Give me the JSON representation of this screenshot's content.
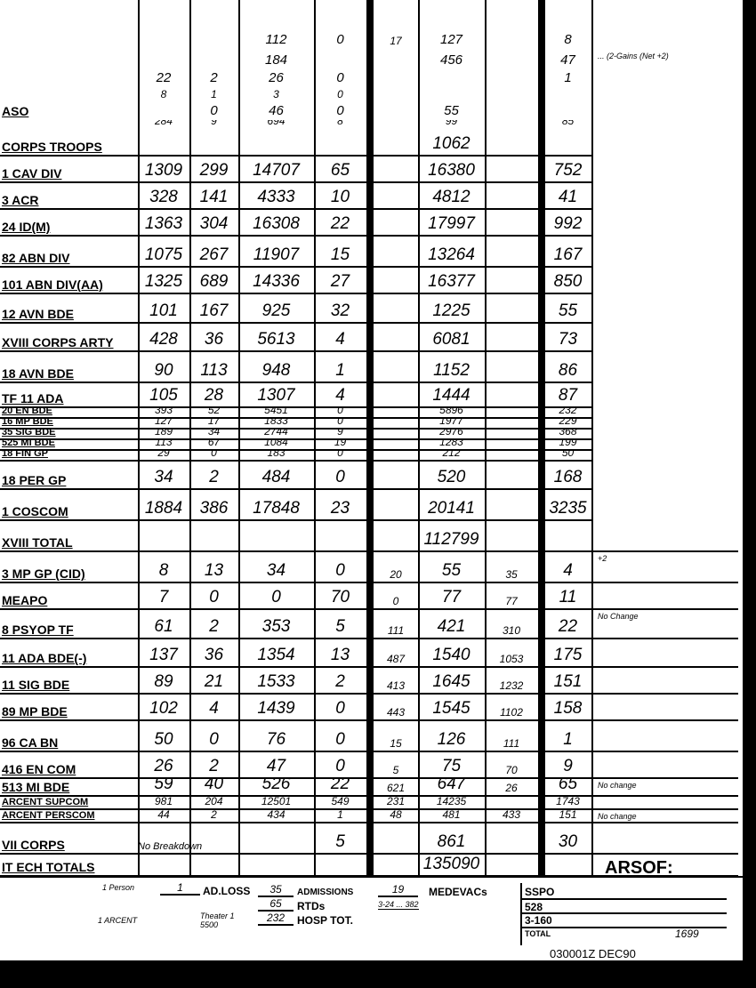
{
  "rows": [
    {
      "label": "",
      "cells": [
        "",
        "",
        "112",
        "0",
        "17",
        "127",
        "",
        "8"
      ],
      "note": ""
    },
    {
      "label": "",
      "cells": [
        "",
        "",
        "184",
        "",
        "",
        "456",
        "",
        "47"
      ],
      "note": "... (2-Gains (Net +2)"
    },
    {
      "label": "",
      "cells": [
        "22",
        "2",
        "26",
        "0",
        "",
        "",
        "",
        "1"
      ],
      "note": ""
    },
    {
      "label": "",
      "cells": [
        "8",
        "1",
        "3",
        "0",
        "",
        "",
        "",
        ""
      ],
      "note": ""
    },
    {
      "label": "ASO",
      "cells": [
        "",
        "0",
        "46",
        "0",
        "",
        "55",
        "",
        ""
      ],
      "note": ""
    },
    {
      "label": "",
      "cells": [
        "284",
        "9",
        "694",
        "8",
        "",
        "99",
        "",
        "85"
      ],
      "note": ""
    },
    {
      "label": "CORPS TROOPS",
      "cells": [
        "",
        "",
        "",
        "",
        "",
        "1062",
        "",
        ""
      ],
      "note": ""
    },
    {
      "label": "1 CAV DIV",
      "cells": [
        "1309",
        "299",
        "14707",
        "65",
        "",
        "16380",
        "",
        "752"
      ],
      "note": ""
    },
    {
      "label": "3 ACR",
      "cells": [
        "328",
        "141",
        "4333",
        "10",
        "",
        "4812",
        "",
        "41"
      ],
      "note": ""
    },
    {
      "label": "24 ID(M)",
      "cells": [
        "1363",
        "304",
        "16308",
        "22",
        "",
        "17997",
        "",
        "992"
      ],
      "note": ""
    },
    {
      "label": "82 ABN DIV",
      "cells": [
        "1075",
        "267",
        "11907",
        "15",
        "",
        "13264",
        "",
        "167"
      ],
      "note": ""
    },
    {
      "label": "101 ABN DIV(AA)",
      "cells": [
        "1325",
        "689",
        "14336",
        "27",
        "",
        "16377",
        "",
        "850"
      ],
      "note": ""
    },
    {
      "label": "12 AVN BDE",
      "cells": [
        "101",
        "167",
        "925",
        "32",
        "",
        "1225",
        "",
        "55"
      ],
      "note": ""
    },
    {
      "label": "XVIII CORPS ARTY",
      "cells": [
        "428",
        "36",
        "5613",
        "4",
        "",
        "6081",
        "",
        "73"
      ],
      "note": ""
    },
    {
      "label": "18 AVN BDE",
      "cells": [
        "90",
        "113",
        "948",
        "1",
        "",
        "1152",
        "",
        "86"
      ],
      "note": ""
    },
    {
      "label": "TF 11 ADA",
      "cells": [
        "105",
        "28",
        "1307",
        "4",
        "",
        "1444",
        "",
        "87"
      ],
      "note": ""
    },
    {
      "label": "20 EN BDE",
      "cells": [
        "393",
        "52",
        "5451",
        "0",
        "",
        "5896",
        "",
        "232"
      ],
      "note": ""
    },
    {
      "label": "16 MP BDE",
      "cells": [
        "127",
        "17",
        "1833",
        "0",
        "",
        "1977",
        "",
        "229"
      ],
      "note": ""
    },
    {
      "label": "35 SIG BDE",
      "cells": [
        "189",
        "34",
        "2744",
        "9",
        "",
        "2976",
        "",
        "368"
      ],
      "note": ""
    },
    {
      "label": "525 MI BDE",
      "cells": [
        "113",
        "67",
        "1084",
        "19",
        "",
        "1283",
        "",
        "199"
      ],
      "note": ""
    },
    {
      "label": "18 FIN GP",
      "cells": [
        "29",
        "0",
        "183",
        "0",
        "",
        "212",
        "",
        "50"
      ],
      "note": ""
    },
    {
      "label": "18 PER GP",
      "cells": [
        "34",
        "2",
        "484",
        "0",
        "",
        "520",
        "",
        "168"
      ],
      "note": ""
    },
    {
      "label": "1 COSCOM",
      "cells": [
        "1884",
        "386",
        "17848",
        "23",
        "",
        "20141",
        "",
        "3235"
      ],
      "note": ""
    },
    {
      "label": "XVIII TOTAL",
      "cells": [
        "",
        "",
        "",
        "",
        "",
        "112799",
        "",
        ""
      ],
      "note": ""
    },
    {
      "label": "3 MP GP (CID)",
      "cells": [
        "8",
        "13",
        "34",
        "0",
        "20",
        "55",
        "35",
        "4"
      ],
      "note": "+2"
    },
    {
      "label": "MEAPO",
      "cells": [
        "7",
        "0",
        "0",
        "70",
        "0",
        "77",
        "77",
        "11"
      ],
      "note": ""
    },
    {
      "label": "8 PSYOP TF",
      "cells": [
        "61",
        "2",
        "353",
        "5",
        "111",
        "421",
        "310",
        "22"
      ],
      "note": "No Change"
    },
    {
      "label": "11 ADA BDE(-)",
      "cells": [
        "137",
        "36",
        "1354",
        "13",
        "487",
        "1540",
        "1053",
        "175"
      ],
      "note": ""
    },
    {
      "label": "11 SIG BDE",
      "cells": [
        "89",
        "21",
        "1533",
        "2",
        "413",
        "1645",
        "1232",
        "151"
      ],
      "note": ""
    },
    {
      "label": "89 MP BDE",
      "cells": [
        "102",
        "4",
        "1439",
        "0",
        "443",
        "1545",
        "1102",
        "158"
      ],
      "note": ""
    },
    {
      "label": "96 CA BN",
      "cells": [
        "50",
        "0",
        "76",
        "0",
        "15",
        "126",
        "111",
        "1"
      ],
      "note": ""
    },
    {
      "label": "416 EN COM",
      "cells": [
        "26",
        "2",
        "47",
        "0",
        "5",
        "75",
        "70",
        "9"
      ],
      "note": ""
    },
    {
      "label": "513 MI BDE",
      "cells": [
        "59",
        "40",
        "526",
        "22",
        "621",
        "647",
        "26",
        "65"
      ],
      "note": "No change"
    },
    {
      "label": "ARCENT SUPCOM",
      "cells": [
        "981",
        "204",
        "12501",
        "549",
        "231",
        "14235",
        "",
        "1743"
      ],
      "note": ""
    },
    {
      "label": "ARCENT PERSCOM",
      "cells": [
        "44",
        "2",
        "434",
        "1",
        "48",
        "481",
        "433",
        "151"
      ],
      "note": "No change"
    },
    {
      "label": "VII CORPS",
      "cells": [
        "No Breakdown",
        "",
        "",
        "5",
        "",
        "861",
        "",
        "30"
      ],
      "note": ""
    },
    {
      "label": "IT ECH TOTALS",
      "cells": [
        "",
        "",
        "",
        "",
        "",
        "135090",
        "",
        ""
      ],
      "note": ""
    }
  ],
  "footer": {
    "person": "1 Person",
    "arcent": "1 ARCENT",
    "ad_loss_value": "1",
    "ad_loss_label": "AD.LOSS",
    "theater": "Theater 1 5500",
    "admissions_value": "35",
    "admissions_label": "ADMISSIONS",
    "rtds_value": "65",
    "rtds_label": "RTDs",
    "hosp_value": "232",
    "hosp_label": "HOSP TOT.",
    "medevac_value": "19",
    "medevac_label": "MEDEVACs",
    "medevac_note": "3-24 ... 382",
    "arsof_label": "ARSOF:",
    "sspo_label": "SSPO",
    "r1": "528",
    "r2": "3-160",
    "total_label": "TOTAL",
    "total_value": "1699",
    "dtg": "030001Z DEC90"
  }
}
